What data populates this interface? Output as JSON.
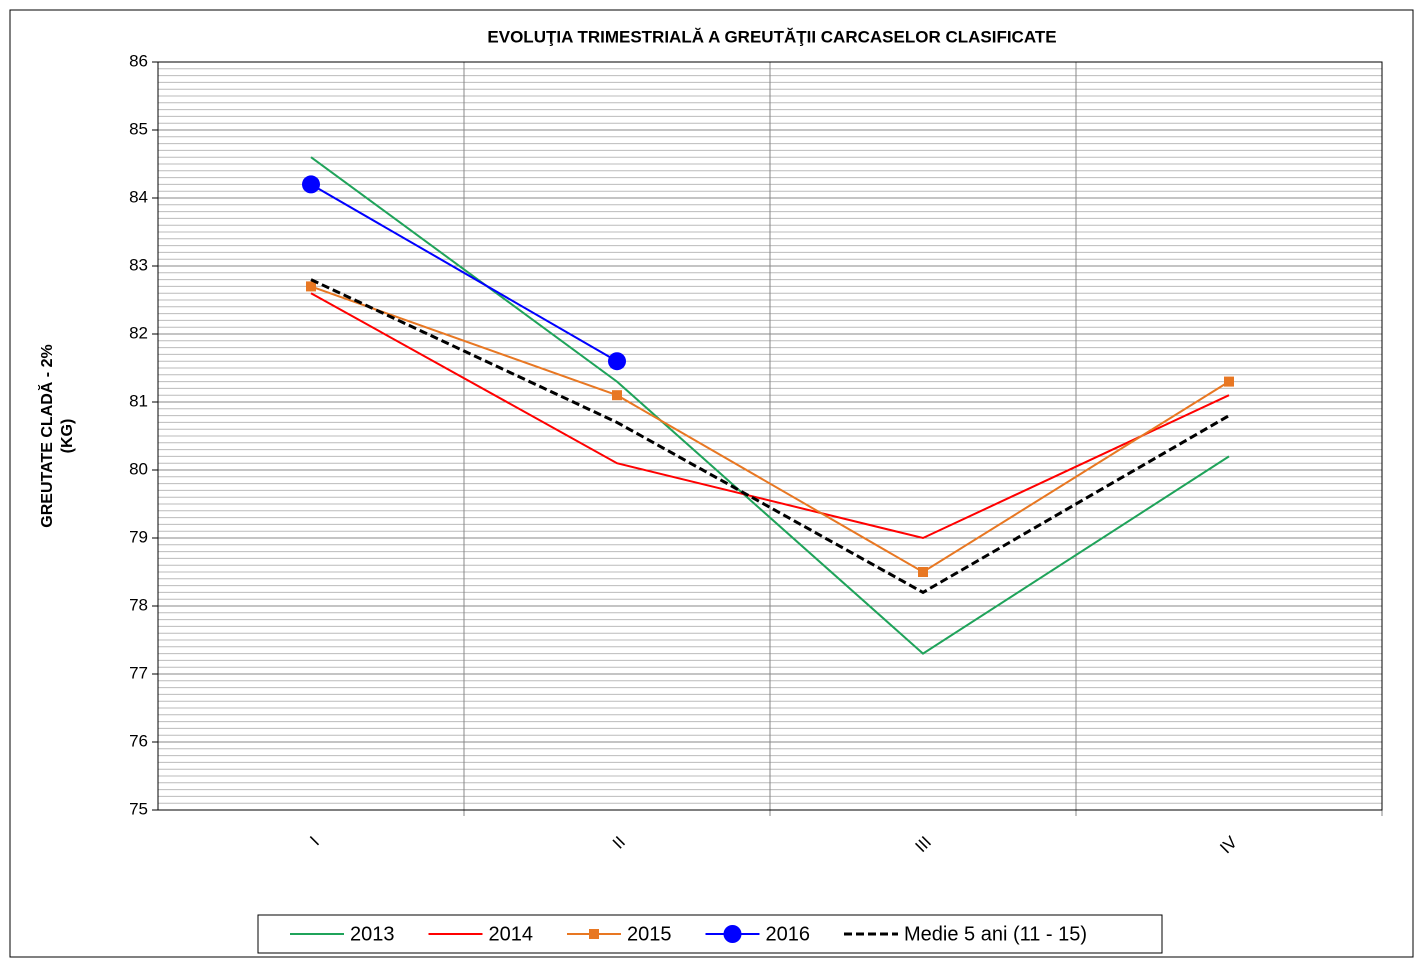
{
  "chart_data": {
    "type": "line",
    "title": "EVOLUŢIA TRIMESTRIALĂ A GREUTĂŢII CARCASELOR CLASIFICATE",
    "ylabel": [
      "GREUTATE CLADĂ - 2%",
      "(KG)"
    ],
    "categories": [
      "I",
      "II",
      "III",
      "IV"
    ],
    "series": [
      {
        "name": "2013",
        "color": "#1fa35a",
        "values": [
          84.6,
          81.3,
          77.3,
          80.2
        ]
      },
      {
        "name": "2014",
        "color": "#ff0000",
        "values": [
          82.6,
          80.1,
          79.0,
          81.1
        ]
      },
      {
        "name": "2015",
        "color": "#e87722",
        "marker": "square",
        "values": [
          82.7,
          81.1,
          78.5,
          81.3
        ]
      },
      {
        "name": "2016",
        "color": "#0000ff",
        "marker": "circle",
        "values": [
          84.2,
          81.6,
          null,
          null
        ]
      },
      {
        "name": "Medie 5 ani (11 - 15)",
        "color": "#000000",
        "dash": true,
        "values": [
          82.8,
          80.7,
          78.2,
          80.8
        ]
      }
    ],
    "ylim": [
      75,
      86
    ],
    "yticks": [
      75,
      76,
      77,
      78,
      79,
      80,
      81,
      82,
      83,
      84,
      85,
      86
    ],
    "minor_grid": 0.1,
    "grid": true,
    "legend": "bottom"
  }
}
